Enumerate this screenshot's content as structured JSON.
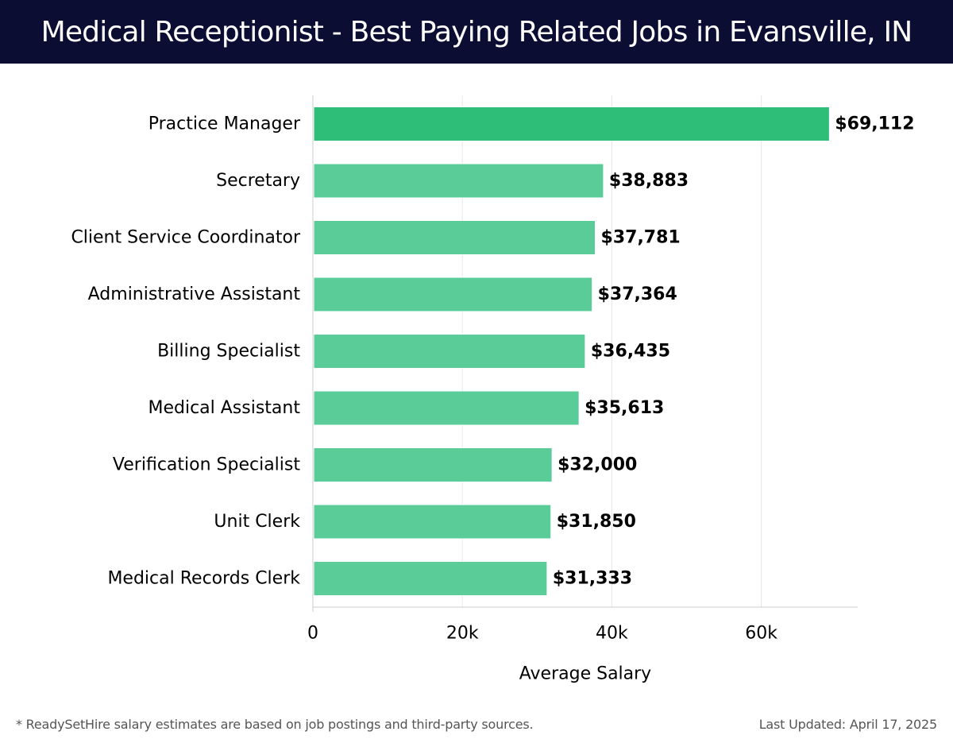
{
  "header": {
    "title": "Medical Receptionist - Best Paying Related Jobs in Evansville, IN"
  },
  "chart_data": {
    "type": "bar",
    "orientation": "horizontal",
    "title": "Medical Receptionist - Best Paying Related Jobs in Evansville, IN",
    "xlabel": "Average Salary",
    "ylabel": "",
    "categories": [
      "Practice Manager",
      "Secretary",
      "Client Service Coordinator",
      "Administrative Assistant",
      "Billing Specialist",
      "Medical Assistant",
      "Verification Specialist",
      "Unit Clerk",
      "Medical Records Clerk"
    ],
    "values": [
      69112,
      38883,
      37781,
      37364,
      36435,
      35613,
      32000,
      31850,
      31333
    ],
    "data_labels": [
      "$69,112",
      "$38,883",
      "$37,781",
      "$37,364",
      "$36,435",
      "$35,613",
      "$32,000",
      "$31,850",
      "$31,333"
    ],
    "xlim": [
      0,
      72900
    ],
    "xticks": [
      0,
      20000,
      40000,
      60000
    ],
    "xtick_labels": [
      "0",
      "20k",
      "40k",
      "60k"
    ],
    "grid": "vertical",
    "colors": {
      "highlight": "#2ebe78",
      "bar": "#5acc98",
      "grid": "#e6e6e6",
      "axis": "#cccccc",
      "text": "#000000"
    }
  },
  "footer": {
    "note": "* ReadySetHire salary estimates are based on job postings and third-party sources.",
    "updated": "Last Updated: April 17, 2025"
  }
}
